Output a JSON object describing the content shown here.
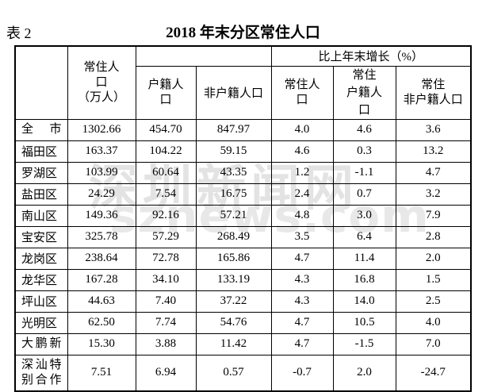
{
  "page": {
    "table_label": "表 2",
    "title": "2018 年末分区常住人口"
  },
  "watermark": {
    "line1": "深圳新闻网",
    "line2": "sznews.com",
    "color": "#e3e3e3"
  },
  "table": {
    "header": {
      "resident_pop": "常住人\n口\n（万人）",
      "hukou_pop": "户籍人\n口",
      "non_hukou_pop": "非户籍人口",
      "growth_group": "比上年末增长（%）",
      "growth_resident": "常住人\n口",
      "growth_hukou": "常住\n户籍人\n口",
      "growth_non_hukou": "常住\n非户籍人口"
    },
    "rows": [
      {
        "name": "全市",
        "spread": true,
        "values": [
          "1302.66",
          "454.70",
          "847.97",
          "4.0",
          "4.6",
          "3.6"
        ]
      },
      {
        "name": "福田区",
        "values": [
          "163.37",
          "104.22",
          "59.15",
          "4.6",
          "0.3",
          "13.2"
        ]
      },
      {
        "name": "罗湖区",
        "values": [
          "103.99",
          "60.64",
          "43.35",
          "1.2",
          "-1.1",
          "4.7"
        ]
      },
      {
        "name": "盐田区",
        "values": [
          "24.29",
          "7.54",
          "16.75",
          "2.4",
          "0.7",
          "3.2"
        ]
      },
      {
        "name": "南山区",
        "values": [
          "149.36",
          "92.16",
          "57.21",
          "4.8",
          "3.0",
          "7.9"
        ]
      },
      {
        "name": "宝安区",
        "values": [
          "325.78",
          "57.29",
          "268.49",
          "3.5",
          "6.4",
          "2.8"
        ]
      },
      {
        "name": "龙岗区",
        "values": [
          "238.64",
          "72.78",
          "165.86",
          "4.7",
          "11.4",
          "2.0"
        ]
      },
      {
        "name": "龙华区",
        "values": [
          "167.28",
          "34.10",
          "133.19",
          "4.3",
          "16.8",
          "1.5"
        ]
      },
      {
        "name": "坪山区",
        "values": [
          "44.63",
          "7.40",
          "37.22",
          "4.3",
          "14.0",
          "2.5"
        ]
      },
      {
        "name": "光明区",
        "values": [
          "62.50",
          "7.74",
          "54.76",
          "4.7",
          "10.5",
          "4.0"
        ]
      },
      {
        "name": "大鹏新",
        "spread": true,
        "values": [
          "15.30",
          "3.88",
          "11.42",
          "4.7",
          "-1.5",
          "7.0"
        ]
      },
      {
        "name": "深汕特\n别合作",
        "spread": true,
        "tall": true,
        "values": [
          "7.51",
          "6.94",
          "0.57",
          "-0.7",
          "2.0",
          "-24.7"
        ]
      }
    ]
  }
}
